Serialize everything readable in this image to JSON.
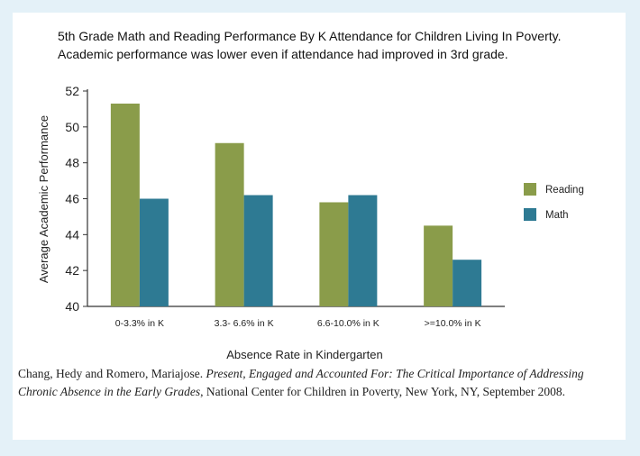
{
  "chart_data": {
    "type": "bar",
    "title": "5th Grade Math and Reading Performance By K Attendance for Children Living In Poverty.",
    "subtitle": "Academic performance was lower even if attendance had improved in 3rd grade.",
    "xlabel": "Absence Rate in Kindergarten",
    "ylabel": "Average Academic Performance",
    "ylim": [
      40,
      52
    ],
    "yticks": [
      40,
      42,
      44,
      46,
      48,
      50,
      52
    ],
    "categories": [
      "0-3.3% in K",
      "3.3- 6.6% in K",
      "6.6-10.0% in K",
      ">=10.0% in K"
    ],
    "series": [
      {
        "name": "Reading",
        "color": "#8a9c4a",
        "values": [
          51.3,
          49.1,
          45.8,
          44.5
        ]
      },
      {
        "name": "Math",
        "color": "#2e7a93",
        "values": [
          46.0,
          46.2,
          46.2,
          42.6
        ]
      }
    ],
    "legend": "right",
    "grid": false
  },
  "citation": {
    "authors": "Chang, Hedy and Romero, Mariajose.",
    "work_title": "Present, Engaged and Accounted For: The Critical Importance of Addressing Chronic Absence in the Early Grades",
    "publisher": ", National Center for Children in Poverty, New York, NY, September 2008."
  }
}
